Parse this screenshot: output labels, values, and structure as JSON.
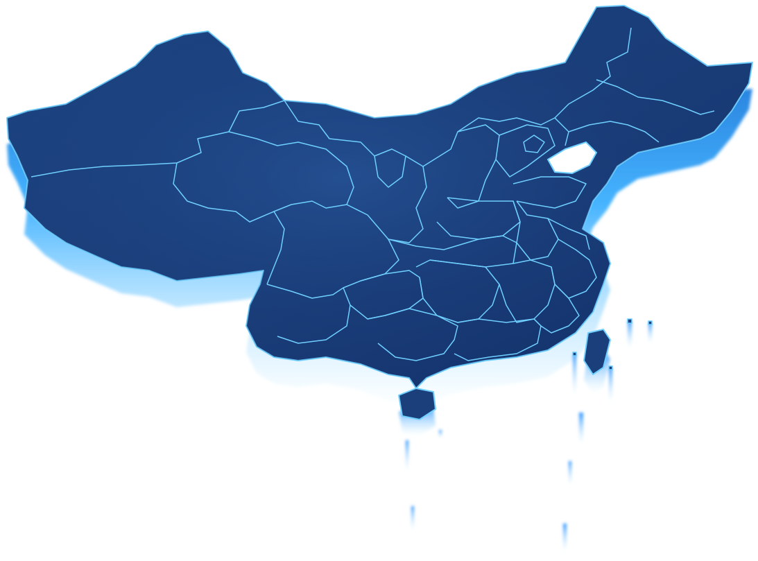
{
  "map": {
    "colors": {
      "land_top": "#1e4a8c",
      "land_deep": "#0f2d63",
      "border": "#6fd0ff",
      "extrusion_top": "#2a8fe8",
      "extrusion_glow": "#7fd6ff",
      "background": "#ffffff"
    },
    "style": "3d-extruded-map",
    "provincial_borders": true,
    "labels_shown": false
  }
}
